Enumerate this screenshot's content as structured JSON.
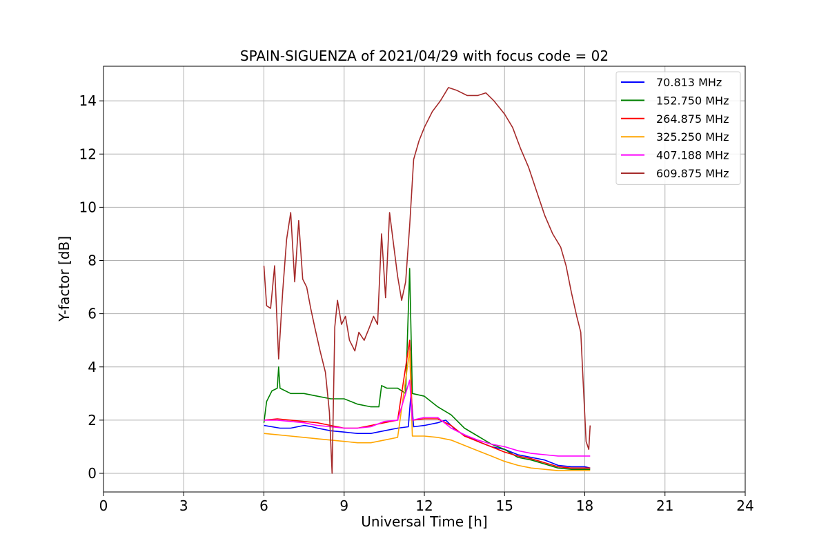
{
  "chart_data": {
    "type": "line",
    "title": "SPAIN-SIGUENZA of 2021/04/29 with focus code = 02",
    "xlabel": "Universal Time [h]",
    "ylabel": "Y-factor [dB]",
    "xlim": [
      0,
      24
    ],
    "ylim": [
      -0.7,
      15.3
    ],
    "xticks": [
      0,
      3,
      6,
      9,
      12,
      15,
      18,
      21,
      24
    ],
    "yticks": [
      0,
      2,
      4,
      6,
      8,
      10,
      12,
      14
    ],
    "grid": true,
    "legend_position": "top-right",
    "series": [
      {
        "name": " 70.813 MHz",
        "color": "#0000ff",
        "points": [
          [
            6.0,
            1.8
          ],
          [
            6.3,
            1.75
          ],
          [
            6.6,
            1.7
          ],
          [
            7.0,
            1.7
          ],
          [
            7.5,
            1.8
          ],
          [
            7.8,
            1.75
          ],
          [
            8.0,
            1.7
          ],
          [
            8.5,
            1.6
          ],
          [
            9.0,
            1.55
          ],
          [
            9.5,
            1.5
          ],
          [
            10.0,
            1.5
          ],
          [
            10.5,
            1.6
          ],
          [
            11.0,
            1.7
          ],
          [
            11.4,
            1.75
          ],
          [
            11.5,
            3.0
          ],
          [
            11.6,
            1.75
          ],
          [
            12.0,
            1.8
          ],
          [
            12.5,
            1.9
          ],
          [
            12.8,
            2.0
          ],
          [
            13.2,
            1.6
          ],
          [
            13.6,
            1.4
          ],
          [
            14.0,
            1.2
          ],
          [
            14.5,
            1.0
          ],
          [
            15.0,
            0.9
          ],
          [
            15.5,
            0.7
          ],
          [
            16.0,
            0.6
          ],
          [
            16.5,
            0.5
          ],
          [
            17.0,
            0.3
          ],
          [
            17.5,
            0.25
          ],
          [
            18.0,
            0.25
          ],
          [
            18.2,
            0.2
          ]
        ]
      },
      {
        "name": "152.750 MHz",
        "color": "#008000",
        "points": [
          [
            6.0,
            1.9
          ],
          [
            6.1,
            2.7
          ],
          [
            6.3,
            3.1
          ],
          [
            6.5,
            3.2
          ],
          [
            6.55,
            4.0
          ],
          [
            6.6,
            3.2
          ],
          [
            7.0,
            3.0
          ],
          [
            7.5,
            3.0
          ],
          [
            8.0,
            2.9
          ],
          [
            8.5,
            2.8
          ],
          [
            9.0,
            2.8
          ],
          [
            9.5,
            2.6
          ],
          [
            10.0,
            2.5
          ],
          [
            10.3,
            2.5
          ],
          [
            10.4,
            3.3
          ],
          [
            10.6,
            3.2
          ],
          [
            11.0,
            3.2
          ],
          [
            11.3,
            3.0
          ],
          [
            11.45,
            7.7
          ],
          [
            11.55,
            3.0
          ],
          [
            12.0,
            2.9
          ],
          [
            12.5,
            2.5
          ],
          [
            13.0,
            2.2
          ],
          [
            13.5,
            1.7
          ],
          [
            14.0,
            1.4
          ],
          [
            14.5,
            1.1
          ],
          [
            15.0,
            0.9
          ],
          [
            15.5,
            0.6
          ],
          [
            16.0,
            0.5
          ],
          [
            16.5,
            0.35
          ],
          [
            17.0,
            0.2
          ],
          [
            17.5,
            0.15
          ],
          [
            18.0,
            0.15
          ],
          [
            18.2,
            0.15
          ]
        ]
      },
      {
        "name": "264.875 MHz",
        "color": "#ff0000",
        "points": [
          [
            6.0,
            2.0
          ],
          [
            6.5,
            2.05
          ],
          [
            7.0,
            2.0
          ],
          [
            7.5,
            1.95
          ],
          [
            8.0,
            1.9
          ],
          [
            8.5,
            1.8
          ],
          [
            9.0,
            1.7
          ],
          [
            9.5,
            1.7
          ],
          [
            10.0,
            1.8
          ],
          [
            10.5,
            1.9
          ],
          [
            11.0,
            2.0
          ],
          [
            11.45,
            5.0
          ],
          [
            11.55,
            2.0
          ],
          [
            12.0,
            2.05
          ],
          [
            12.5,
            2.05
          ],
          [
            13.0,
            1.8
          ],
          [
            13.5,
            1.4
          ],
          [
            14.0,
            1.2
          ],
          [
            14.5,
            1.0
          ],
          [
            15.0,
            0.8
          ],
          [
            15.5,
            0.65
          ],
          [
            16.0,
            0.55
          ],
          [
            16.5,
            0.4
          ],
          [
            17.0,
            0.25
          ],
          [
            17.5,
            0.2
          ],
          [
            18.0,
            0.2
          ],
          [
            18.2,
            0.2
          ]
        ]
      },
      {
        "name": "325.250 MHz",
        "color": "#ffa500",
        "points": [
          [
            6.0,
            1.5
          ],
          [
            6.5,
            1.45
          ],
          [
            7.0,
            1.4
          ],
          [
            7.5,
            1.35
          ],
          [
            8.0,
            1.3
          ],
          [
            8.5,
            1.25
          ],
          [
            9.0,
            1.2
          ],
          [
            9.5,
            1.15
          ],
          [
            10.0,
            1.15
          ],
          [
            10.5,
            1.25
          ],
          [
            11.0,
            1.35
          ],
          [
            11.45,
            4.6
          ],
          [
            11.55,
            1.4
          ],
          [
            12.0,
            1.4
          ],
          [
            12.5,
            1.35
          ],
          [
            13.0,
            1.25
          ],
          [
            13.5,
            1.05
          ],
          [
            14.0,
            0.85
          ],
          [
            14.5,
            0.65
          ],
          [
            15.0,
            0.45
          ],
          [
            15.5,
            0.3
          ],
          [
            16.0,
            0.2
          ],
          [
            16.5,
            0.15
          ],
          [
            17.0,
            0.1
          ],
          [
            17.5,
            0.1
          ],
          [
            18.0,
            0.1
          ],
          [
            18.2,
            0.1
          ]
        ]
      },
      {
        "name": "407.188 MHz",
        "color": "#ff00ff",
        "points": [
          [
            6.0,
            2.0
          ],
          [
            6.5,
            2.0
          ],
          [
            7.0,
            1.95
          ],
          [
            7.5,
            1.9
          ],
          [
            8.0,
            1.8
          ],
          [
            8.5,
            1.75
          ],
          [
            9.0,
            1.7
          ],
          [
            9.5,
            1.7
          ],
          [
            10.0,
            1.75
          ],
          [
            10.5,
            1.95
          ],
          [
            11.0,
            2.0
          ],
          [
            11.45,
            3.5
          ],
          [
            11.55,
            2.0
          ],
          [
            12.0,
            2.1
          ],
          [
            12.5,
            2.1
          ],
          [
            13.0,
            1.7
          ],
          [
            13.5,
            1.45
          ],
          [
            14.0,
            1.25
          ],
          [
            14.5,
            1.1
          ],
          [
            15.0,
            1.0
          ],
          [
            15.5,
            0.85
          ],
          [
            16.0,
            0.75
          ],
          [
            16.5,
            0.7
          ],
          [
            17.0,
            0.65
          ],
          [
            17.5,
            0.65
          ],
          [
            18.0,
            0.65
          ],
          [
            18.2,
            0.65
          ]
        ]
      },
      {
        "name": "609.875 MHz",
        "color": "#a52a2a",
        "points": [
          [
            6.0,
            7.8
          ],
          [
            6.1,
            6.3
          ],
          [
            6.25,
            6.2
          ],
          [
            6.4,
            7.8
          ],
          [
            6.55,
            4.3
          ],
          [
            6.7,
            6.8
          ],
          [
            6.85,
            8.8
          ],
          [
            7.0,
            9.8
          ],
          [
            7.15,
            7.2
          ],
          [
            7.3,
            9.5
          ],
          [
            7.45,
            7.3
          ],
          [
            7.6,
            7.0
          ],
          [
            7.75,
            6.2
          ],
          [
            7.9,
            5.5
          ],
          [
            8.1,
            4.6
          ],
          [
            8.3,
            3.8
          ],
          [
            8.45,
            2.3
          ],
          [
            8.55,
            0.0
          ],
          [
            8.65,
            5.5
          ],
          [
            8.75,
            6.5
          ],
          [
            8.9,
            5.6
          ],
          [
            9.05,
            5.9
          ],
          [
            9.2,
            5.0
          ],
          [
            9.4,
            4.6
          ],
          [
            9.55,
            5.3
          ],
          [
            9.75,
            5.0
          ],
          [
            9.95,
            5.5
          ],
          [
            10.1,
            5.9
          ],
          [
            10.25,
            5.6
          ],
          [
            10.4,
            9.0
          ],
          [
            10.55,
            6.6
          ],
          [
            10.7,
            9.8
          ],
          [
            10.85,
            8.6
          ],
          [
            11.0,
            7.4
          ],
          [
            11.15,
            6.5
          ],
          [
            11.3,
            7.2
          ],
          [
            11.45,
            9.3
          ],
          [
            11.6,
            11.8
          ],
          [
            11.8,
            12.5
          ],
          [
            12.0,
            13.0
          ],
          [
            12.3,
            13.6
          ],
          [
            12.6,
            14.0
          ],
          [
            12.9,
            14.5
          ],
          [
            13.2,
            14.4
          ],
          [
            13.6,
            14.2
          ],
          [
            14.0,
            14.2
          ],
          [
            14.3,
            14.3
          ],
          [
            14.6,
            14.0
          ],
          [
            15.0,
            13.5
          ],
          [
            15.3,
            13.0
          ],
          [
            15.6,
            12.2
          ],
          [
            15.9,
            11.5
          ],
          [
            16.2,
            10.6
          ],
          [
            16.5,
            9.7
          ],
          [
            16.8,
            9.0
          ],
          [
            17.1,
            8.5
          ],
          [
            17.3,
            7.8
          ],
          [
            17.5,
            6.8
          ],
          [
            17.7,
            5.9
          ],
          [
            17.85,
            5.3
          ],
          [
            17.95,
            3.2
          ],
          [
            18.05,
            1.2
          ],
          [
            18.15,
            0.9
          ],
          [
            18.2,
            1.8
          ]
        ]
      }
    ]
  }
}
